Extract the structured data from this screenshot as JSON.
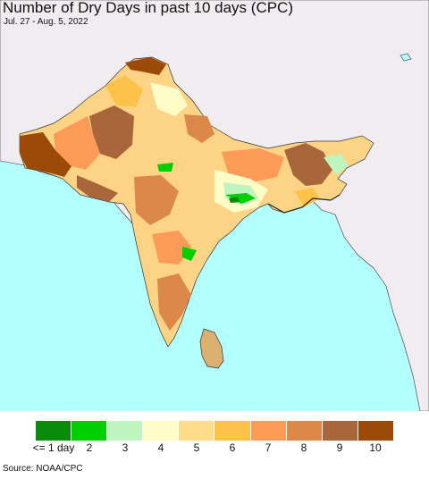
{
  "title": "Number of Dry Days in past 10 days (CPC)",
  "date_range": "Jul. 27 - Aug. 5, 2022",
  "source": "Source: NOAA/CPC",
  "legend": {
    "labels": [
      "<= 1 day",
      "2",
      "3",
      "4",
      "5",
      "6",
      "7",
      "8",
      "9",
      "10"
    ],
    "colors": [
      "#0a8a0a",
      "#00d000",
      "#bff5bf",
      "#fffcc8",
      "#fedc8a",
      "#fdc24a",
      "#fc9a58",
      "#dc8848",
      "#a8663a",
      "#9c4a08"
    ]
  },
  "map_colors": {
    "ocean": "#b3feff",
    "outside_land": "#f0ecf0",
    "borders": "#333333"
  }
}
